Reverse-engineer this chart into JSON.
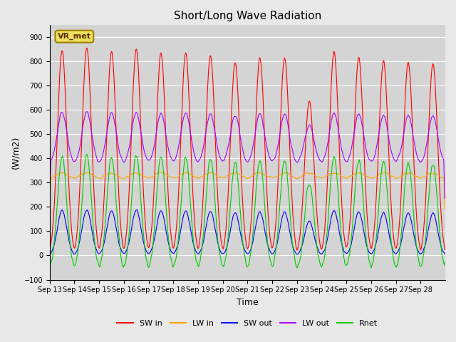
{
  "title": "Short/Long Wave Radiation",
  "xlabel": "Time",
  "ylabel": "(W/m2)",
  "ylim": [
    -100,
    950
  ],
  "yticks": [
    -100,
    0,
    100,
    200,
    300,
    400,
    500,
    600,
    700,
    800,
    900
  ],
  "xtick_labels": [
    "Sep 13",
    "Sep 14",
    "Sep 15",
    "Sep 16",
    "Sep 17",
    "Sep 18",
    "Sep 19",
    "Sep 20",
    "Sep 21",
    "Sep 22",
    "Sep 23",
    "Sep 24",
    "Sep 25",
    "Sep 26",
    "Sep 27",
    "Sep 28"
  ],
  "colors": {
    "SW_in": "#ff0000",
    "LW_in": "#ffa500",
    "SW_out": "#0000ff",
    "LW_out": "#aa00ff",
    "Rnet": "#00cc00"
  },
  "legend_labels": [
    "SW in",
    "LW in",
    "SW out",
    "LW out",
    "Rnet"
  ],
  "station_label": "VR_met",
  "background_color": "#e8e8e8",
  "plot_bg_color": "#d4d4d4",
  "n_days": 16,
  "dt_hours": 0.5,
  "sw_peaks": [
    850,
    860,
    845,
    855,
    840,
    840,
    830,
    800,
    820,
    820,
    640,
    845,
    820,
    805,
    800,
    795
  ]
}
